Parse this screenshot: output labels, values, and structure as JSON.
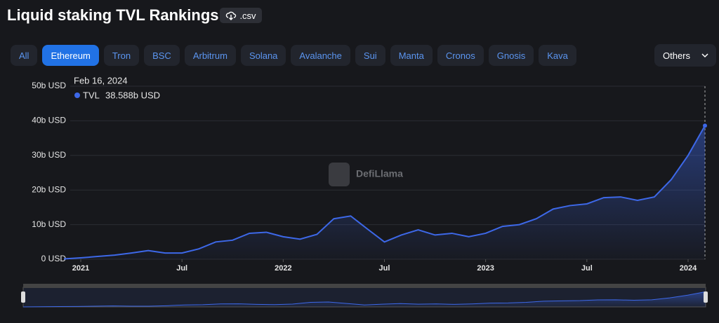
{
  "header": {
    "title": "Liquid staking TVL Rankings",
    "csv": ".csv"
  },
  "tabs": {
    "items": [
      "All",
      "Ethereum",
      "Tron",
      "BSC",
      "Arbitrum",
      "Solana",
      "Avalanche",
      "Sui",
      "Manta",
      "Cronos",
      "Gnosis",
      "Kava"
    ],
    "selected": 1
  },
  "dropdown": "Others",
  "watermark": "DefiLlama",
  "chart_data": {
    "type": "area",
    "x": [
      "2020-12",
      "2021-01",
      "2021-02",
      "2021-03",
      "2021-04",
      "2021-05",
      "2021-06",
      "2021-07",
      "2021-08",
      "2021-09",
      "2021-10",
      "2021-11",
      "2021-12",
      "2022-01",
      "2022-02",
      "2022-03",
      "2022-04",
      "2022-05",
      "2022-06",
      "2022-07",
      "2022-08",
      "2022-09",
      "2022-10",
      "2022-11",
      "2022-12",
      "2023-01",
      "2023-02",
      "2023-03",
      "2023-04",
      "2023-05",
      "2023-06",
      "2023-07",
      "2023-08",
      "2023-09",
      "2023-10",
      "2023-11",
      "2023-12",
      "2024-01",
      "2024-02"
    ],
    "series": [
      {
        "name": "TVL",
        "color": "#3d68e8",
        "values": [
          100000000,
          400000000,
          800000000,
          1200000000,
          1800000000,
          2500000000,
          1800000000,
          1800000000,
          3000000000,
          5000000000,
          5500000000,
          7500000000,
          7800000000,
          6500000000,
          5800000000,
          7200000000,
          11700000000,
          12500000000,
          8700000000,
          5000000000,
          7000000000,
          8500000000,
          7000000000,
          7500000000,
          6500000000,
          7500000000,
          9500000000,
          10000000000,
          11700000000,
          14500000000,
          15500000000,
          16000000000,
          17800000000,
          18000000000,
          17000000000,
          18000000000,
          23000000000,
          30000000000,
          38588000000
        ]
      }
    ],
    "xlim": [
      "2020-12",
      "2024-02"
    ],
    "xticks": [
      {
        "value": "2021-01",
        "label": "2021"
      },
      {
        "value": "2021-07",
        "label": "Jul"
      },
      {
        "value": "2022-01",
        "label": "2022"
      },
      {
        "value": "2022-07",
        "label": "Jul"
      },
      {
        "value": "2023-01",
        "label": "2023"
      },
      {
        "value": "2023-07",
        "label": "Jul"
      },
      {
        "value": "2024-01",
        "label": "2024"
      }
    ],
    "ylim": [
      0,
      50000000000
    ],
    "yticks": [
      {
        "value": 0,
        "label": "0 USD"
      },
      {
        "value": 10000000000,
        "label": "10b USD"
      },
      {
        "value": 20000000000,
        "label": "20b USD"
      },
      {
        "value": 30000000000,
        "label": "30b USD"
      },
      {
        "value": 40000000000,
        "label": "40b USD"
      },
      {
        "value": 50000000000,
        "label": "50b USD"
      }
    ],
    "grid": true,
    "tooltip": {
      "date": "Feb 16, 2024",
      "value": 38588000000,
      "label": "38.588b USD"
    }
  }
}
